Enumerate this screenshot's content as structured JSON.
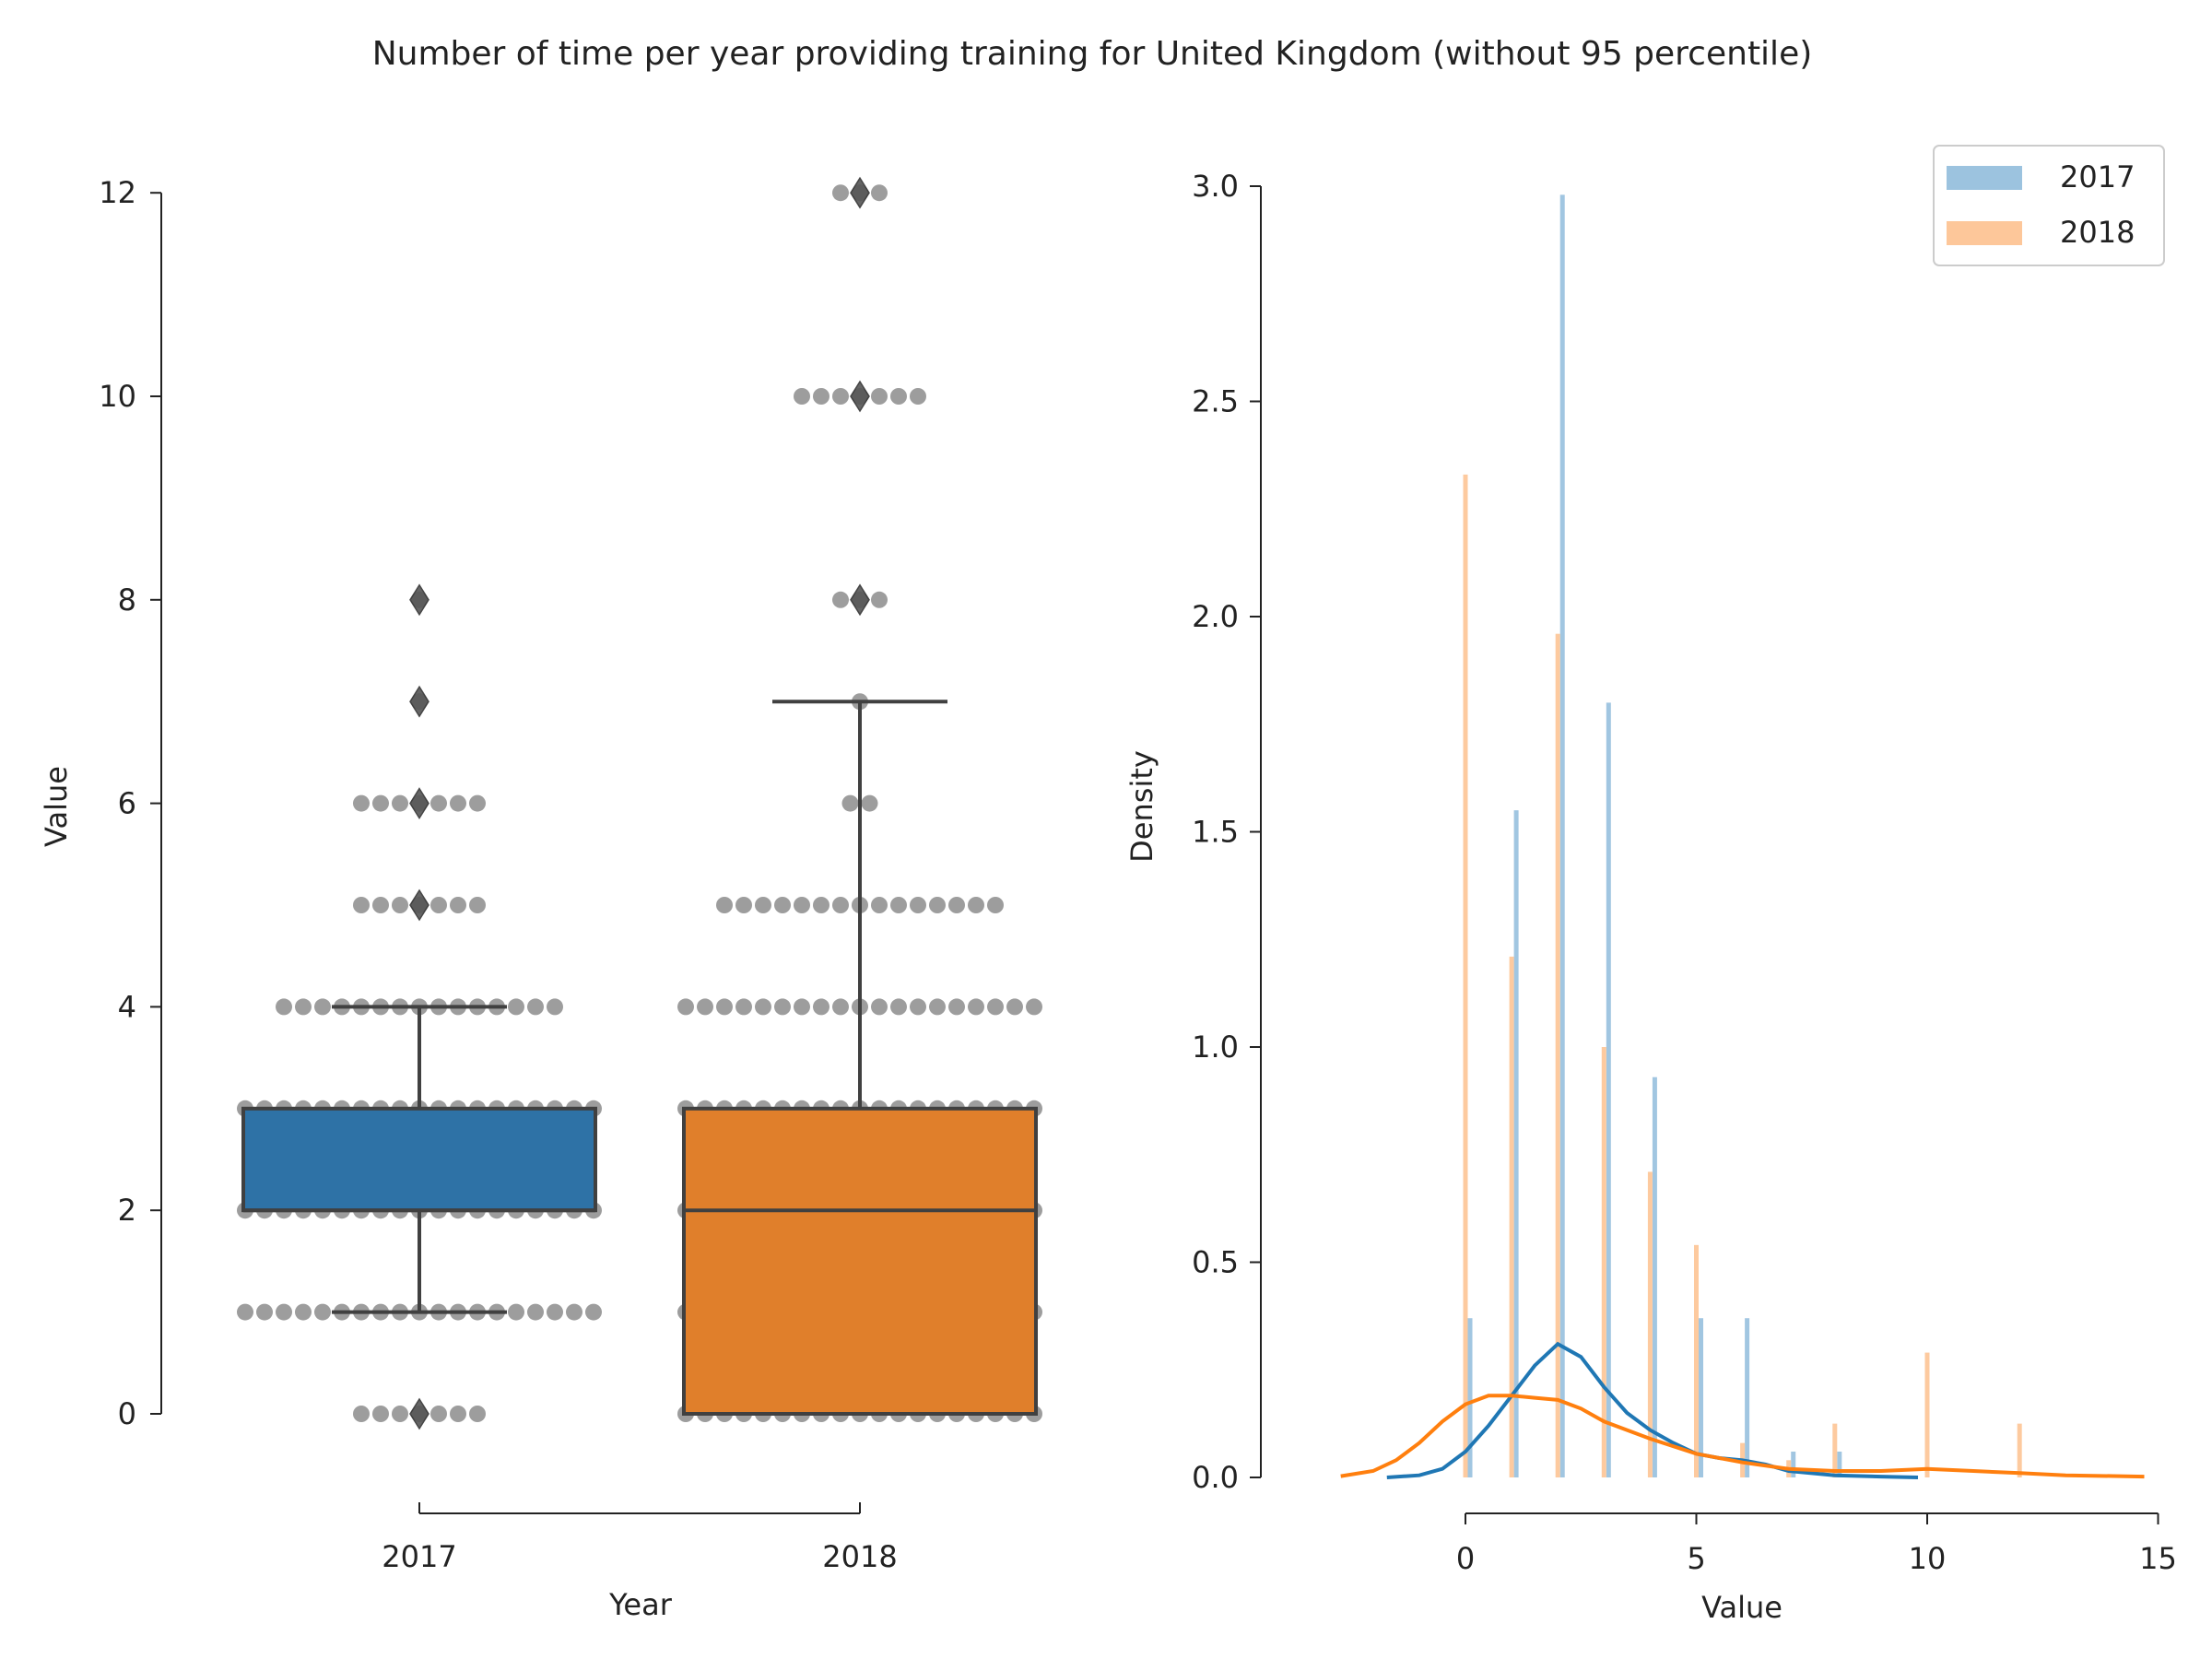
{
  "figure": {
    "title": "Number of time per year providing training for United Kingdom (without 95 percentile)"
  },
  "colors": {
    "c2017": "#2e72a6",
    "c2018": "#e07f2b",
    "kde2017": "#1f77b4",
    "kde2018": "#ff7f0e",
    "hist2017": "#9cc3df",
    "hist2018": "#fdc79a",
    "swarm": "#8c8c8c",
    "box_edge": "#404040",
    "outlier": "#555555"
  },
  "chart_data": [
    {
      "type": "box",
      "xlabel": "Year",
      "ylabel": "Value",
      "categories": [
        "2017",
        "2018"
      ],
      "ylim": [
        0,
        12
      ],
      "yticks": [
        0,
        2,
        4,
        6,
        8,
        10,
        12
      ],
      "boxes": [
        {
          "name": "2017",
          "whisker_low": 1,
          "q1": 2,
          "median": 2,
          "q3": 3,
          "whisker_high": 4,
          "outliers": [
            0,
            5,
            6,
            7,
            8
          ]
        },
        {
          "name": "2018",
          "whisker_low": 0,
          "q1": 0,
          "median": 2,
          "q3": 3,
          "whisker_high": 7,
          "outliers": [
            8,
            10,
            12
          ]
        }
      ],
      "swarm": [
        {
          "name": "2017",
          "points": [
            {
              "value": 0,
              "count": 7
            },
            {
              "value": 1,
              "count": 19
            },
            {
              "value": 2,
              "count": 19
            },
            {
              "value": 3,
              "count": 19
            },
            {
              "value": 4,
              "count": 15
            },
            {
              "value": 5,
              "count": 7
            },
            {
              "value": 6,
              "count": 7
            },
            {
              "value": 7,
              "count": 1
            },
            {
              "value": 8,
              "count": 1
            }
          ]
        },
        {
          "name": "2018",
          "points": [
            {
              "value": 0,
              "count": 19
            },
            {
              "value": 1,
              "count": 19
            },
            {
              "value": 2,
              "count": 19
            },
            {
              "value": 3,
              "count": 19
            },
            {
              "value": 4,
              "count": 19
            },
            {
              "value": 5,
              "count": 15
            },
            {
              "value": 6,
              "count": 2
            },
            {
              "value": 7,
              "count": 1
            },
            {
              "value": 8,
              "count": 3
            },
            {
              "value": 10,
              "count": 7
            },
            {
              "value": 12,
              "count": 3
            }
          ]
        }
      ]
    },
    {
      "type": "histogram-kde",
      "xlabel": "Value",
      "ylabel": "Density",
      "xlim": [
        -3.5,
        15
      ],
      "ylim": [
        0,
        3.0
      ],
      "xticks": [
        0,
        5,
        10,
        15
      ],
      "yticks": [
        0.0,
        0.5,
        1.0,
        1.5,
        2.0,
        2.5,
        3.0
      ],
      "legend": {
        "position": "top-right",
        "entries": [
          "2017",
          "2018"
        ]
      },
      "series": [
        {
          "name": "2017",
          "hist": [
            {
              "x": 0,
              "density": 0.37
            },
            {
              "x": 1,
              "density": 1.55
            },
            {
              "x": 2,
              "density": 2.98
            },
            {
              "x": 3,
              "density": 1.8
            },
            {
              "x": 4,
              "density": 0.93
            },
            {
              "x": 5,
              "density": 0.37
            },
            {
              "x": 6,
              "density": 0.37
            },
            {
              "x": 7,
              "density": 0.06
            },
            {
              "x": 8,
              "density": 0.06
            }
          ],
          "kde": {
            "x": [
              -1.7,
              -1.0,
              -0.5,
              0,
              0.5,
              1.0,
              1.5,
              2.0,
              2.5,
              3.0,
              3.5,
              4.0,
              4.5,
              5.0,
              5.5,
              6.0,
              6.5,
              7.0,
              8.0,
              9.0,
              9.8
            ],
            "y": [
              0.0,
              0.005,
              0.02,
              0.06,
              0.12,
              0.19,
              0.26,
              0.31,
              0.28,
              0.21,
              0.15,
              0.11,
              0.08,
              0.055,
              0.045,
              0.04,
              0.03,
              0.015,
              0.005,
              0.002,
              0.0
            ]
          }
        },
        {
          "name": "2018",
          "hist": [
            {
              "x": 0,
              "density": 2.33
            },
            {
              "x": 1,
              "density": 1.21
            },
            {
              "x": 2,
              "density": 1.96
            },
            {
              "x": 3,
              "density": 1.0
            },
            {
              "x": 4,
              "density": 0.71
            },
            {
              "x": 5,
              "density": 0.54
            },
            {
              "x": 6,
              "density": 0.08
            },
            {
              "x": 7,
              "density": 0.04
            },
            {
              "x": 8,
              "density": 0.125
            },
            {
              "x": 10,
              "density": 0.29
            },
            {
              "x": 12,
              "density": 0.125
            }
          ],
          "kde": {
            "x": [
              -2.7,
              -2.0,
              -1.5,
              -1.0,
              -0.5,
              0,
              0.5,
              1.0,
              1.5,
              2.0,
              2.5,
              3.0,
              3.5,
              4.0,
              5.0,
              6.0,
              7.0,
              8.0,
              9.0,
              10.0,
              11.0,
              12.0,
              13.0,
              14.7
            ],
            "y": [
              0.003,
              0.015,
              0.04,
              0.08,
              0.13,
              0.17,
              0.19,
              0.19,
              0.185,
              0.18,
              0.16,
              0.13,
              0.11,
              0.09,
              0.055,
              0.035,
              0.02,
              0.015,
              0.015,
              0.02,
              0.015,
              0.01,
              0.005,
              0.002
            ]
          }
        }
      ]
    }
  ]
}
